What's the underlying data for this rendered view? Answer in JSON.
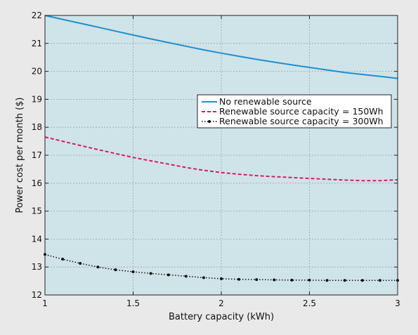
{
  "chart_data": {
    "type": "line",
    "title": "",
    "xlabel": "Battery capacity (kWh)",
    "ylabel": "Power cost per month ($)",
    "xlim": [
      1,
      3
    ],
    "ylim": [
      12,
      22
    ],
    "xticks": [
      1,
      1.5,
      2,
      2.5,
      3
    ],
    "xtick_labels": [
      "1",
      "1.5",
      "2",
      "2.5",
      "3"
    ],
    "yticks": [
      12,
      13,
      14,
      15,
      16,
      17,
      18,
      19,
      20,
      21,
      22
    ],
    "ytick_labels": [
      "12",
      "13",
      "14",
      "15",
      "16",
      "17",
      "18",
      "19",
      "20",
      "21",
      "22"
    ],
    "grid": true,
    "legend_position": "right, upper-middle",
    "plot_background": "#cfe4e8",
    "series": [
      {
        "name": "No renewable source",
        "legend_label": "No renewable source",
        "color": "#1f8fcf",
        "style": "solid",
        "x": [
          1.0,
          1.1,
          1.2,
          1.3,
          1.4,
          1.5,
          1.6,
          1.7,
          1.8,
          1.9,
          2.0,
          2.1,
          2.2,
          2.3,
          2.4,
          2.5,
          2.6,
          2.7,
          2.8,
          2.9,
          3.0
        ],
        "y": [
          22.0,
          21.86,
          21.72,
          21.58,
          21.44,
          21.3,
          21.16,
          21.03,
          20.9,
          20.77,
          20.65,
          20.54,
          20.43,
          20.33,
          20.23,
          20.14,
          20.05,
          19.96,
          19.89,
          19.82,
          19.75
        ]
      },
      {
        "name": "Renewable source capacity = 150Wh",
        "legend_label": "Renewable source capacity",
        "legend_value": "= 150Wh",
        "color": "#d81b70",
        "style": "dashed",
        "x": [
          1.0,
          1.1,
          1.2,
          1.3,
          1.4,
          1.5,
          1.6,
          1.7,
          1.8,
          1.9,
          2.0,
          2.1,
          2.2,
          2.3,
          2.4,
          2.5,
          2.6,
          2.7,
          2.8,
          2.9,
          3.0
        ],
        "y": [
          17.65,
          17.5,
          17.35,
          17.2,
          17.06,
          16.92,
          16.8,
          16.68,
          16.56,
          16.46,
          16.38,
          16.32,
          16.27,
          16.23,
          16.2,
          16.17,
          16.14,
          16.11,
          16.09,
          16.09,
          16.12
        ]
      },
      {
        "name": "Renewable source capacity = 300Wh",
        "legend_label": "Renewable source capacity",
        "legend_value": "= 300Wh",
        "color": "#111111",
        "style": "dotted-markers",
        "x": [
          1.0,
          1.1,
          1.2,
          1.3,
          1.4,
          1.5,
          1.6,
          1.7,
          1.8,
          1.9,
          2.0,
          2.1,
          2.2,
          2.3,
          2.4,
          2.5,
          2.6,
          2.7,
          2.8,
          2.9,
          3.0
        ],
        "y": [
          13.45,
          13.28,
          13.13,
          13.0,
          12.9,
          12.83,
          12.77,
          12.72,
          12.67,
          12.62,
          12.58,
          12.56,
          12.55,
          12.54,
          12.53,
          12.53,
          12.52,
          12.52,
          12.52,
          12.52,
          12.52
        ]
      }
    ]
  }
}
